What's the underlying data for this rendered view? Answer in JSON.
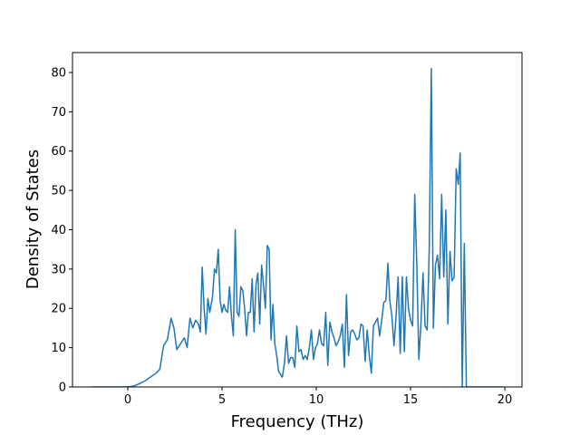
{
  "chart_data": {
    "type": "line",
    "xlabel": "Frequency (THz)",
    "ylabel": "Density of States",
    "xlim": [
      -2.93,
      20.91
    ],
    "ylim": [
      0,
      85.07
    ],
    "xticks": [
      0,
      5,
      10,
      15,
      20
    ],
    "yticks": [
      0,
      10,
      20,
      30,
      40,
      50,
      60,
      70,
      80
    ],
    "x": [
      -1.9,
      -1.0,
      0,
      0.3,
      0.6,
      0.9,
      1.2,
      1.5,
      1.7,
      1.9,
      2.1,
      2.3,
      2.45,
      2.6,
      2.8,
      3.0,
      3.15,
      3.3,
      3.45,
      3.6,
      3.75,
      3.85,
      3.95,
      4.05,
      4.15,
      4.25,
      4.35,
      4.5,
      4.6,
      4.7,
      4.8,
      4.9,
      5.0,
      5.1,
      5.2,
      5.3,
      5.4,
      5.5,
      5.6,
      5.7,
      5.8,
      5.9,
      6.0,
      6.1,
      6.2,
      6.3,
      6.4,
      6.5,
      6.6,
      6.7,
      6.8,
      6.9,
      7.0,
      7.1,
      7.2,
      7.3,
      7.4,
      7.5,
      7.6,
      7.7,
      7.8,
      7.9,
      8.0,
      8.2,
      8.31,
      8.42,
      8.53,
      8.64,
      8.75,
      8.86,
      8.97,
      9.08,
      9.19,
      9.3,
      9.41,
      9.52,
      9.63,
      9.74,
      9.85,
      9.96,
      10.06,
      10.17,
      10.28,
      10.39,
      10.5,
      10.61,
      10.72,
      10.83,
      10.94,
      11.05,
      11.16,
      11.27,
      11.38,
      11.49,
      11.6,
      11.71,
      11.82,
      11.93,
      12.04,
      12.15,
      12.26,
      12.37,
      12.48,
      12.59,
      12.7,
      12.81,
      12.92,
      13.03,
      13.14,
      13.25,
      13.36,
      13.47,
      13.58,
      13.69,
      13.8,
      13.9,
      14.01,
      14.12,
      14.23,
      14.34,
      14.45,
      14.56,
      14.67,
      14.78,
      14.89,
      15.0,
      15.11,
      15.22,
      15.33,
      15.44,
      15.55,
      15.66,
      15.77,
      15.88,
      15.99,
      16.1,
      16.21,
      16.32,
      16.43,
      16.54,
      16.65,
      16.76,
      16.87,
      16.98,
      17.09,
      17.2,
      17.31,
      17.42,
      17.53,
      17.63,
      17.74,
      17.85,
      17.96,
      19.9
    ],
    "series": [
      {
        "color": "#1f77b4",
        "values": [
          0,
          0,
          0,
          0.2,
          0.8,
          1.5,
          2.5,
          3.5,
          4.5,
          10.5,
          12,
          17.5,
          15,
          9.5,
          11,
          12.5,
          10,
          17.5,
          15,
          17,
          16,
          14,
          30.5,
          20,
          13.5,
          22.5,
          19,
          23,
          30,
          29,
          35,
          22,
          19,
          21,
          19.5,
          19,
          25.5,
          18,
          13,
          40,
          19,
          18,
          25.5,
          24.5,
          20,
          13,
          19,
          19,
          27.5,
          14,
          26,
          29,
          16,
          31,
          26,
          20,
          36,
          35,
          12,
          21,
          11,
          8,
          4,
          2.5,
          6,
          13,
          6,
          7.5,
          7.5,
          5,
          15.5,
          9,
          9.5,
          7,
          8,
          7,
          10,
          14.5,
          7,
          10,
          11,
          14.5,
          11,
          10.5,
          19,
          5.5,
          16.5,
          14,
          12.5,
          10.5,
          11.5,
          13,
          16,
          5,
          23.5,
          8,
          14,
          14.5,
          13.5,
          12,
          12.5,
          16,
          15.5,
          6.5,
          14.5,
          8,
          3.5,
          15.5,
          16.5,
          17.5,
          13,
          17,
          21.5,
          22,
          31.5,
          22,
          18,
          10.5,
          18,
          28,
          8.5,
          28,
          9,
          28,
          20,
          17,
          15.5,
          49,
          31,
          7,
          16,
          29,
          15.5,
          14.5,
          35,
          81,
          15,
          31,
          33.5,
          27.5,
          49,
          28,
          45,
          16,
          34.5,
          27,
          28,
          55.5,
          51.5,
          59.5,
          0,
          36.5,
          0,
          0
        ]
      }
    ]
  }
}
